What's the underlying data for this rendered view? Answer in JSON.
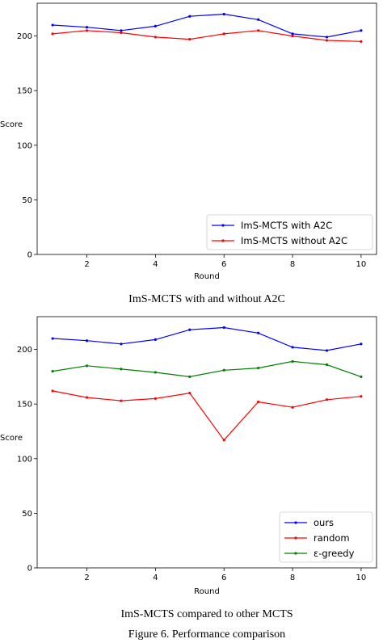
{
  "chart_data": [
    {
      "type": "line",
      "xlabel": "Round",
      "ylabel": "Score",
      "xlim": [
        0.55,
        10.45
      ],
      "ylim": [
        0,
        230
      ],
      "xticks": [
        2,
        4,
        6,
        8,
        10
      ],
      "yticks": [
        0,
        50,
        100,
        150,
        200
      ],
      "legend_position": "bottom-right",
      "x": [
        1,
        2,
        3,
        4,
        5,
        6,
        7,
        8,
        9,
        10
      ],
      "series": [
        {
          "name": "ImS-MCTS with A2C",
          "color": "#0000ff",
          "values": [
            210,
            208,
            205,
            209,
            218,
            220,
            215,
            202,
            199,
            205
          ]
        },
        {
          "name": "ImS-MCTS without A2C",
          "color": "#ff0000",
          "values": [
            202,
            205,
            203,
            199,
            197,
            202,
            205,
            200,
            196,
            195
          ]
        }
      ],
      "caption": "ImS-MCTS with and without A2C"
    },
    {
      "type": "line",
      "xlabel": "Round",
      "ylabel": "Score",
      "xlim": [
        0.55,
        10.45
      ],
      "ylim": [
        0,
        230
      ],
      "xticks": [
        2,
        4,
        6,
        8,
        10
      ],
      "yticks": [
        0,
        50,
        100,
        150,
        200
      ],
      "legend_position": "bottom-right",
      "x": [
        1,
        2,
        3,
        4,
        5,
        6,
        7,
        8,
        9,
        10
      ],
      "series": [
        {
          "name": "ours",
          "color": "#0000ff",
          "values": [
            210,
            208,
            205,
            209,
            218,
            220,
            215,
            202,
            199,
            205
          ]
        },
        {
          "name": "random",
          "color": "#ff0000",
          "values": [
            162,
            156,
            153,
            155,
            160,
            117,
            152,
            147,
            154,
            157
          ]
        },
        {
          "name": "ε-greedy",
          "color": "#008000",
          "values": [
            180,
            185,
            182,
            179,
            175,
            181,
            183,
            189,
            186,
            175
          ]
        }
      ],
      "caption": "ImS-MCTS compared to other MCTS"
    }
  ],
  "figure_caption": "Figure 6.  Performance comparison"
}
